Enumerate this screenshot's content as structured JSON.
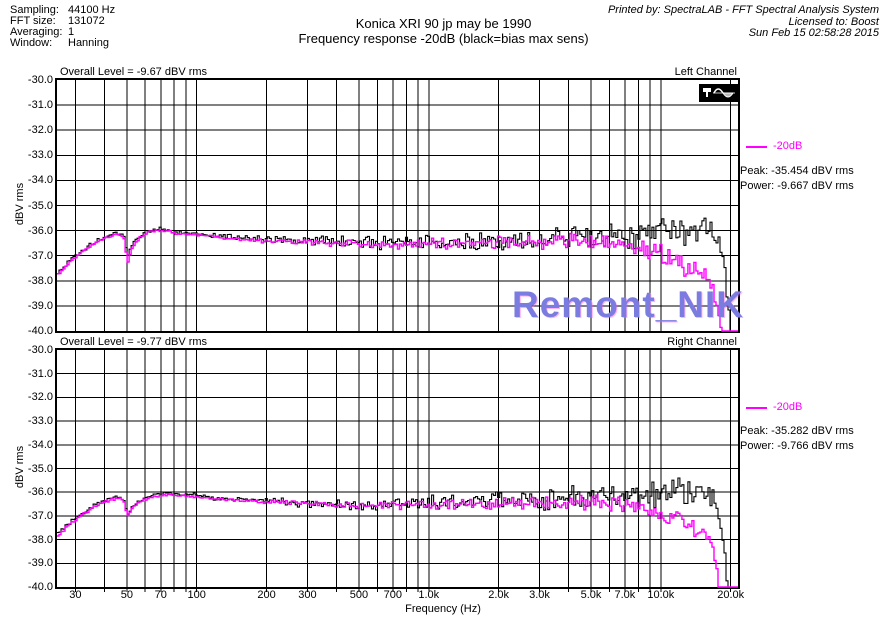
{
  "header": {
    "params": [
      {
        "label": "Sampling:",
        "value": "44100 Hz"
      },
      {
        "label": "FFT size:",
        "value": "131072"
      },
      {
        "label": "Averaging:",
        "value": "1"
      },
      {
        "label": "Window:",
        "value": "Hanning"
      }
    ],
    "title_line1": "Konica XRI 90 jp may be 1990",
    "title_line2": "Frequency response -20dB (black=bias max sens)",
    "printed_by": "Printed by: SpectraLAB - FFT Spectral Analysis System",
    "licensed_to": "Licensed to: Boost",
    "datetime": "Sun Feb 15 02:58:28 2015"
  },
  "watermark": {
    "text": "Remont_NIK",
    "color": "#7b7ce0"
  },
  "colors": {
    "trace_bias": "#000000",
    "trace_20db": "#ff00ff",
    "watermark": "#7b7ce0"
  },
  "chart_data": [
    {
      "type": "line",
      "channel_label": "Left Channel",
      "overall_level_text": "Overall Level = -9.67 dBV rms",
      "legend": {
        "line_label": "-20dB",
        "peak": "Peak: -35.454 dBV rms",
        "power": "Power: -9.667 dBV rms"
      },
      "x_axis": {
        "label": "Frequency (Hz)",
        "scale": "log",
        "min_hz": 25,
        "max_hz": 21500,
        "tick_hz": [
          30,
          50,
          70,
          100,
          200,
          300,
          500,
          700,
          1000,
          2000,
          3000,
          5000,
          7000,
          10000,
          20000
        ],
        "tick_labels": [
          "30",
          "50",
          "70",
          "100",
          "200",
          "300",
          "500",
          "700",
          "1.0k",
          "2.0k",
          "3.0k",
          "5.0k",
          "7.0k",
          "10.0k",
          "20.0k"
        ]
      },
      "y_axis": {
        "label": "dBV rms",
        "min": -40,
        "max": -30,
        "tick_labels": [
          "-30.0",
          "-31.0",
          "-32.0",
          "-33.0",
          "-34.0",
          "-35.0",
          "-36.0",
          "-37.0",
          "-38.0",
          "-39.0",
          "-40.0"
        ]
      },
      "series": [
        {
          "name": "bias max sens",
          "color": "#000000",
          "noise_db": 0.5,
          "points": [
            [
              25,
              -37.7
            ],
            [
              28,
              -37.2
            ],
            [
              32,
              -36.8
            ],
            [
              36,
              -36.45
            ],
            [
              40,
              -36.25
            ],
            [
              45,
              -36.1
            ],
            [
              48,
              -36.2
            ],
            [
              50,
              -37.0
            ],
            [
              52,
              -36.6
            ],
            [
              56,
              -36.25
            ],
            [
              62,
              -36.0
            ],
            [
              70,
              -35.95
            ],
            [
              80,
              -36.05
            ],
            [
              95,
              -36.1
            ],
            [
              120,
              -36.2
            ],
            [
              150,
              -36.3
            ],
            [
              200,
              -36.35
            ],
            [
              300,
              -36.4
            ],
            [
              450,
              -36.45
            ],
            [
              600,
              -36.5
            ],
            [
              800,
              -36.5
            ],
            [
              1000,
              -36.45
            ],
            [
              1500,
              -36.4
            ],
            [
              2200,
              -36.35
            ],
            [
              3200,
              -36.3
            ],
            [
              4500,
              -36.25
            ],
            [
              6500,
              -36.15
            ],
            [
              9000,
              -36.1
            ],
            [
              12000,
              -36.0
            ],
            [
              15000,
              -35.95
            ],
            [
              16500,
              -36.05
            ],
            [
              17500,
              -36.35
            ],
            [
              18300,
              -36.9
            ],
            [
              18900,
              -37.9
            ],
            [
              19400,
              -39.0
            ],
            [
              19800,
              -40
            ],
            [
              21500,
              -40
            ]
          ]
        },
        {
          "name": "-20dB",
          "color": "#ff00ff",
          "noise_db": 0.32,
          "points": [
            [
              25,
              -37.75
            ],
            [
              28,
              -37.25
            ],
            [
              32,
              -36.85
            ],
            [
              36,
              -36.5
            ],
            [
              40,
              -36.3
            ],
            [
              45,
              -36.15
            ],
            [
              48,
              -36.25
            ],
            [
              50,
              -37.3
            ],
            [
              52,
              -36.7
            ],
            [
              56,
              -36.3
            ],
            [
              62,
              -36.05
            ],
            [
              70,
              -36.0
            ],
            [
              80,
              -36.1
            ],
            [
              95,
              -36.15
            ],
            [
              120,
              -36.25
            ],
            [
              150,
              -36.35
            ],
            [
              200,
              -36.4
            ],
            [
              300,
              -36.45
            ],
            [
              450,
              -36.5
            ],
            [
              600,
              -36.55
            ],
            [
              800,
              -36.55
            ],
            [
              1000,
              -36.5
            ],
            [
              1500,
              -36.5
            ],
            [
              2200,
              -36.45
            ],
            [
              3200,
              -36.45
            ],
            [
              4500,
              -36.4
            ],
            [
              6000,
              -36.45
            ],
            [
              7000,
              -36.5
            ],
            [
              8000,
              -36.6
            ],
            [
              9000,
              -36.75
            ],
            [
              10000,
              -36.95
            ],
            [
              11000,
              -37.1
            ],
            [
              12000,
              -37.3
            ],
            [
              13000,
              -37.45
            ],
            [
              14000,
              -37.6
            ],
            [
              15000,
              -37.8
            ],
            [
              16000,
              -38.05
            ],
            [
              16800,
              -38.5
            ],
            [
              17400,
              -39.1
            ],
            [
              17900,
              -39.8
            ],
            [
              18200,
              -40
            ],
            [
              21500,
              -40
            ]
          ]
        }
      ]
    },
    {
      "type": "line",
      "channel_label": "Right Channel",
      "overall_level_text": "Overall Level = -9.77 dBV rms",
      "legend": {
        "line_label": "-20dB",
        "peak": "Peak: -35.282 dBV rms",
        "power": "Power: -9.766 dBV rms"
      },
      "x_axis": {
        "label": "Frequency (Hz)",
        "scale": "log",
        "min_hz": 25,
        "max_hz": 21500,
        "tick_hz": [
          30,
          50,
          70,
          100,
          200,
          300,
          500,
          700,
          1000,
          2000,
          3000,
          5000,
          7000,
          10000,
          20000
        ],
        "tick_labels": [
          "30",
          "50",
          "70",
          "100",
          "200",
          "300",
          "500",
          "700",
          "1.0k",
          "2.0k",
          "3.0k",
          "5.0k",
          "7.0k",
          "10.0k",
          "20.0k"
        ]
      },
      "y_axis": {
        "label": "dBV rms",
        "min": -40,
        "max": -30,
        "tick_labels": [
          "-30.0",
          "-31.0",
          "-32.0",
          "-33.0",
          "-34.0",
          "-35.0",
          "-36.0",
          "-37.0",
          "-38.0",
          "-39.0",
          "-40.0"
        ]
      },
      "series": [
        {
          "name": "bias max sens",
          "color": "#000000",
          "noise_db": 0.5,
          "points": [
            [
              25,
              -37.8
            ],
            [
              28,
              -37.3
            ],
            [
              32,
              -36.9
            ],
            [
              36,
              -36.55
            ],
            [
              40,
              -36.35
            ],
            [
              45,
              -36.2
            ],
            [
              48,
              -36.3
            ],
            [
              50,
              -36.9
            ],
            [
              53,
              -36.55
            ],
            [
              58,
              -36.3
            ],
            [
              65,
              -36.1
            ],
            [
              75,
              -36.05
            ],
            [
              85,
              -36.1
            ],
            [
              100,
              -36.15
            ],
            [
              120,
              -36.25
            ],
            [
              150,
              -36.3
            ],
            [
              200,
              -36.35
            ],
            [
              300,
              -36.45
            ],
            [
              450,
              -36.5
            ],
            [
              600,
              -36.5
            ],
            [
              800,
              -36.5
            ],
            [
              1000,
              -36.45
            ],
            [
              1500,
              -36.4
            ],
            [
              2200,
              -36.35
            ],
            [
              3200,
              -36.3
            ],
            [
              4500,
              -36.25
            ],
            [
              6500,
              -36.15
            ],
            [
              9000,
              -36.1
            ],
            [
              12000,
              -36.0
            ],
            [
              15000,
              -35.95
            ],
            [
              16300,
              -36.0
            ],
            [
              17000,
              -36.3
            ],
            [
              17600,
              -36.9
            ],
            [
              18100,
              -37.8
            ],
            [
              18700,
              -38.9
            ],
            [
              19200,
              -40
            ],
            [
              21500,
              -40
            ]
          ]
        },
        {
          "name": "-20dB",
          "color": "#ff00ff",
          "noise_db": 0.32,
          "points": [
            [
              25,
              -37.85
            ],
            [
              28,
              -37.35
            ],
            [
              32,
              -36.95
            ],
            [
              36,
              -36.6
            ],
            [
              40,
              -36.4
            ],
            [
              45,
              -36.25
            ],
            [
              48,
              -36.35
            ],
            [
              50,
              -37.0
            ],
            [
              53,
              -36.6
            ],
            [
              58,
              -36.35
            ],
            [
              65,
              -36.15
            ],
            [
              75,
              -36.1
            ],
            [
              85,
              -36.15
            ],
            [
              100,
              -36.2
            ],
            [
              120,
              -36.3
            ],
            [
              150,
              -36.35
            ],
            [
              200,
              -36.4
            ],
            [
              300,
              -36.5
            ],
            [
              450,
              -36.55
            ],
            [
              600,
              -36.55
            ],
            [
              800,
              -36.55
            ],
            [
              1000,
              -36.5
            ],
            [
              1500,
              -36.5
            ],
            [
              2200,
              -36.45
            ],
            [
              3200,
              -36.45
            ],
            [
              4500,
              -36.4
            ],
            [
              6000,
              -36.45
            ],
            [
              7000,
              -36.55
            ],
            [
              8000,
              -36.65
            ],
            [
              9000,
              -36.75
            ],
            [
              10000,
              -36.9
            ],
            [
              11000,
              -37.0
            ],
            [
              12000,
              -37.15
            ],
            [
              13000,
              -37.3
            ],
            [
              14000,
              -37.5
            ],
            [
              15000,
              -37.65
            ],
            [
              16000,
              -37.95
            ],
            [
              16700,
              -38.55
            ],
            [
              17200,
              -39.25
            ],
            [
              17600,
              -40
            ],
            [
              21500,
              -40
            ]
          ]
        }
      ]
    }
  ]
}
